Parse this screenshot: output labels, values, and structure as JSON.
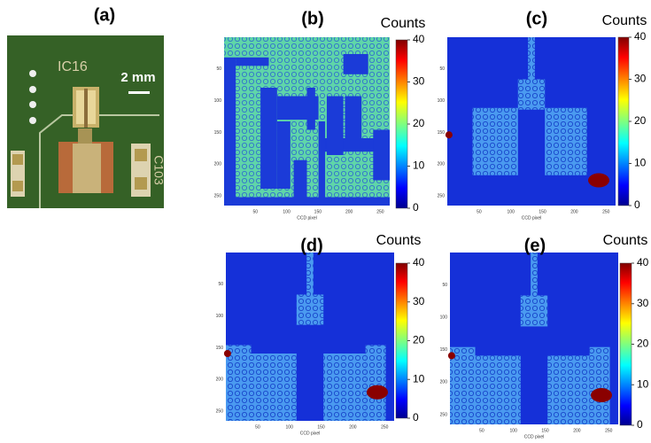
{
  "panels": [
    {
      "label": "(a)",
      "photo_texts": [
        "IC16",
        "C103"
      ],
      "scale_bar": "2 mm"
    },
    {
      "label": "(b)",
      "colorbar_title": "Counts",
      "colorbar_range": [
        0,
        40
      ],
      "colorbar_ticks": [
        0,
        10,
        20,
        30,
        40
      ],
      "xticks": [
        50,
        100,
        150,
        200,
        250
      ],
      "yticks": [
        50,
        100,
        150,
        200,
        250
      ],
      "xlabel": "CCD pixel"
    },
    {
      "label": "(c)",
      "colorbar_title": "Counts",
      "colorbar_range": [
        0,
        40
      ],
      "colorbar_ticks": [
        0,
        10,
        20,
        30,
        40
      ],
      "xticks": [
        50,
        100,
        150,
        200,
        250
      ],
      "yticks": [
        50,
        100,
        150,
        200,
        250
      ],
      "xlabel": "CCD pixel"
    },
    {
      "label": "(d)",
      "colorbar_title": "Counts",
      "colorbar_range": [
        0,
        40
      ],
      "colorbar_ticks": [
        0,
        10,
        20,
        30,
        40
      ],
      "xticks": [
        50,
        100,
        150,
        200,
        250
      ],
      "yticks": [
        50,
        100,
        150,
        200,
        250
      ],
      "xlabel": "CCD pixel"
    },
    {
      "label": "(e)",
      "colorbar_title": "Counts",
      "colorbar_range": [
        0,
        40
      ],
      "colorbar_ticks": [
        0,
        10,
        20,
        30,
        40
      ],
      "xticks": [
        50,
        100,
        150,
        200,
        250
      ],
      "yticks": [
        50,
        100,
        150,
        200,
        250
      ],
      "xlabel": "CCD pixel"
    }
  ]
}
